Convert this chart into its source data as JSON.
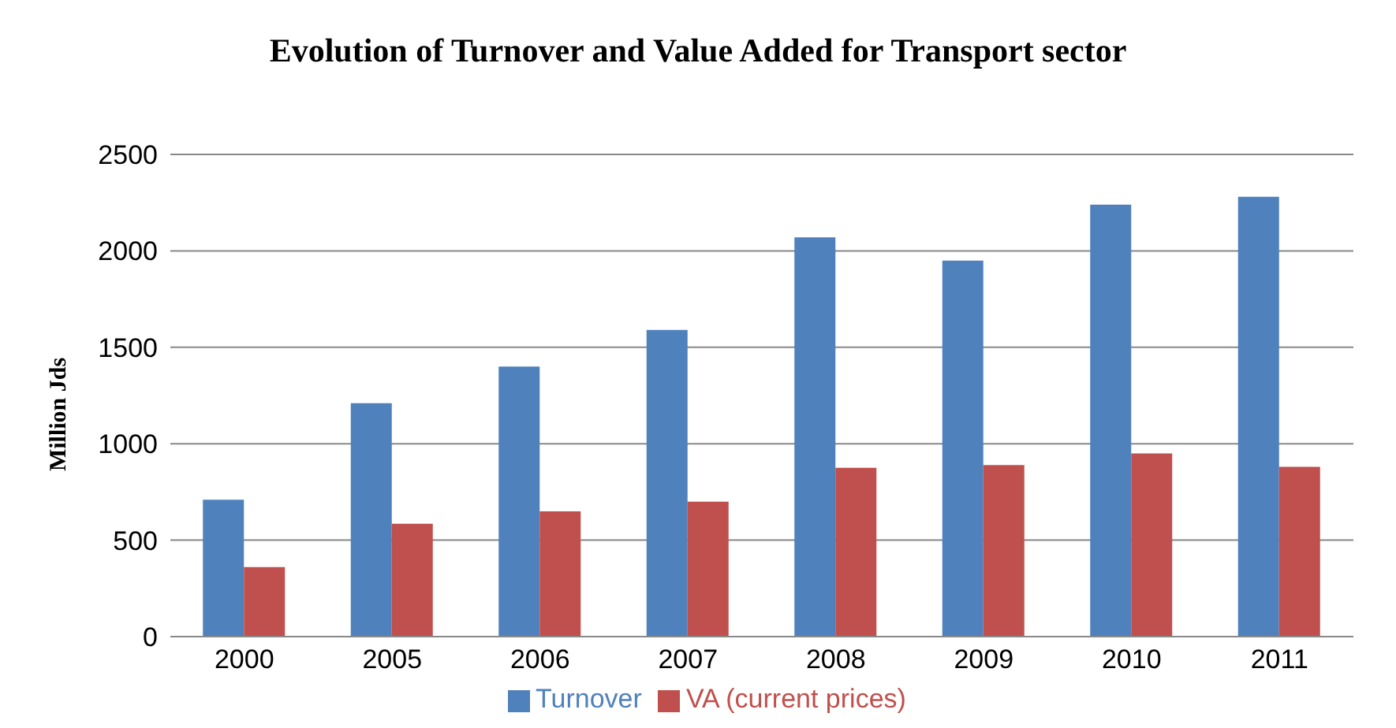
{
  "chart_data": {
    "type": "bar",
    "title": "Evolution of Turnover and Value Added for Transport sector",
    "ylabel": "Million Jds",
    "categories": [
      "2000",
      "2005",
      "2006",
      "2007",
      "2008",
      "2009",
      "2010",
      "2011"
    ],
    "series": [
      {
        "name": "Turnover",
        "color": "#4f81bd",
        "values": [
          710,
          1210,
          1400,
          1590,
          2070,
          1950,
          2240,
          2280
        ]
      },
      {
        "name": "VA (current prices)",
        "color": "#c0504d",
        "values": [
          360,
          585,
          650,
          700,
          875,
          890,
          950,
          880
        ]
      }
    ],
    "ylim": [
      0,
      2500
    ],
    "yticks": [
      0,
      500,
      1000,
      1500,
      2000,
      2500
    ],
    "grid": "y",
    "legend": "bottom"
  }
}
